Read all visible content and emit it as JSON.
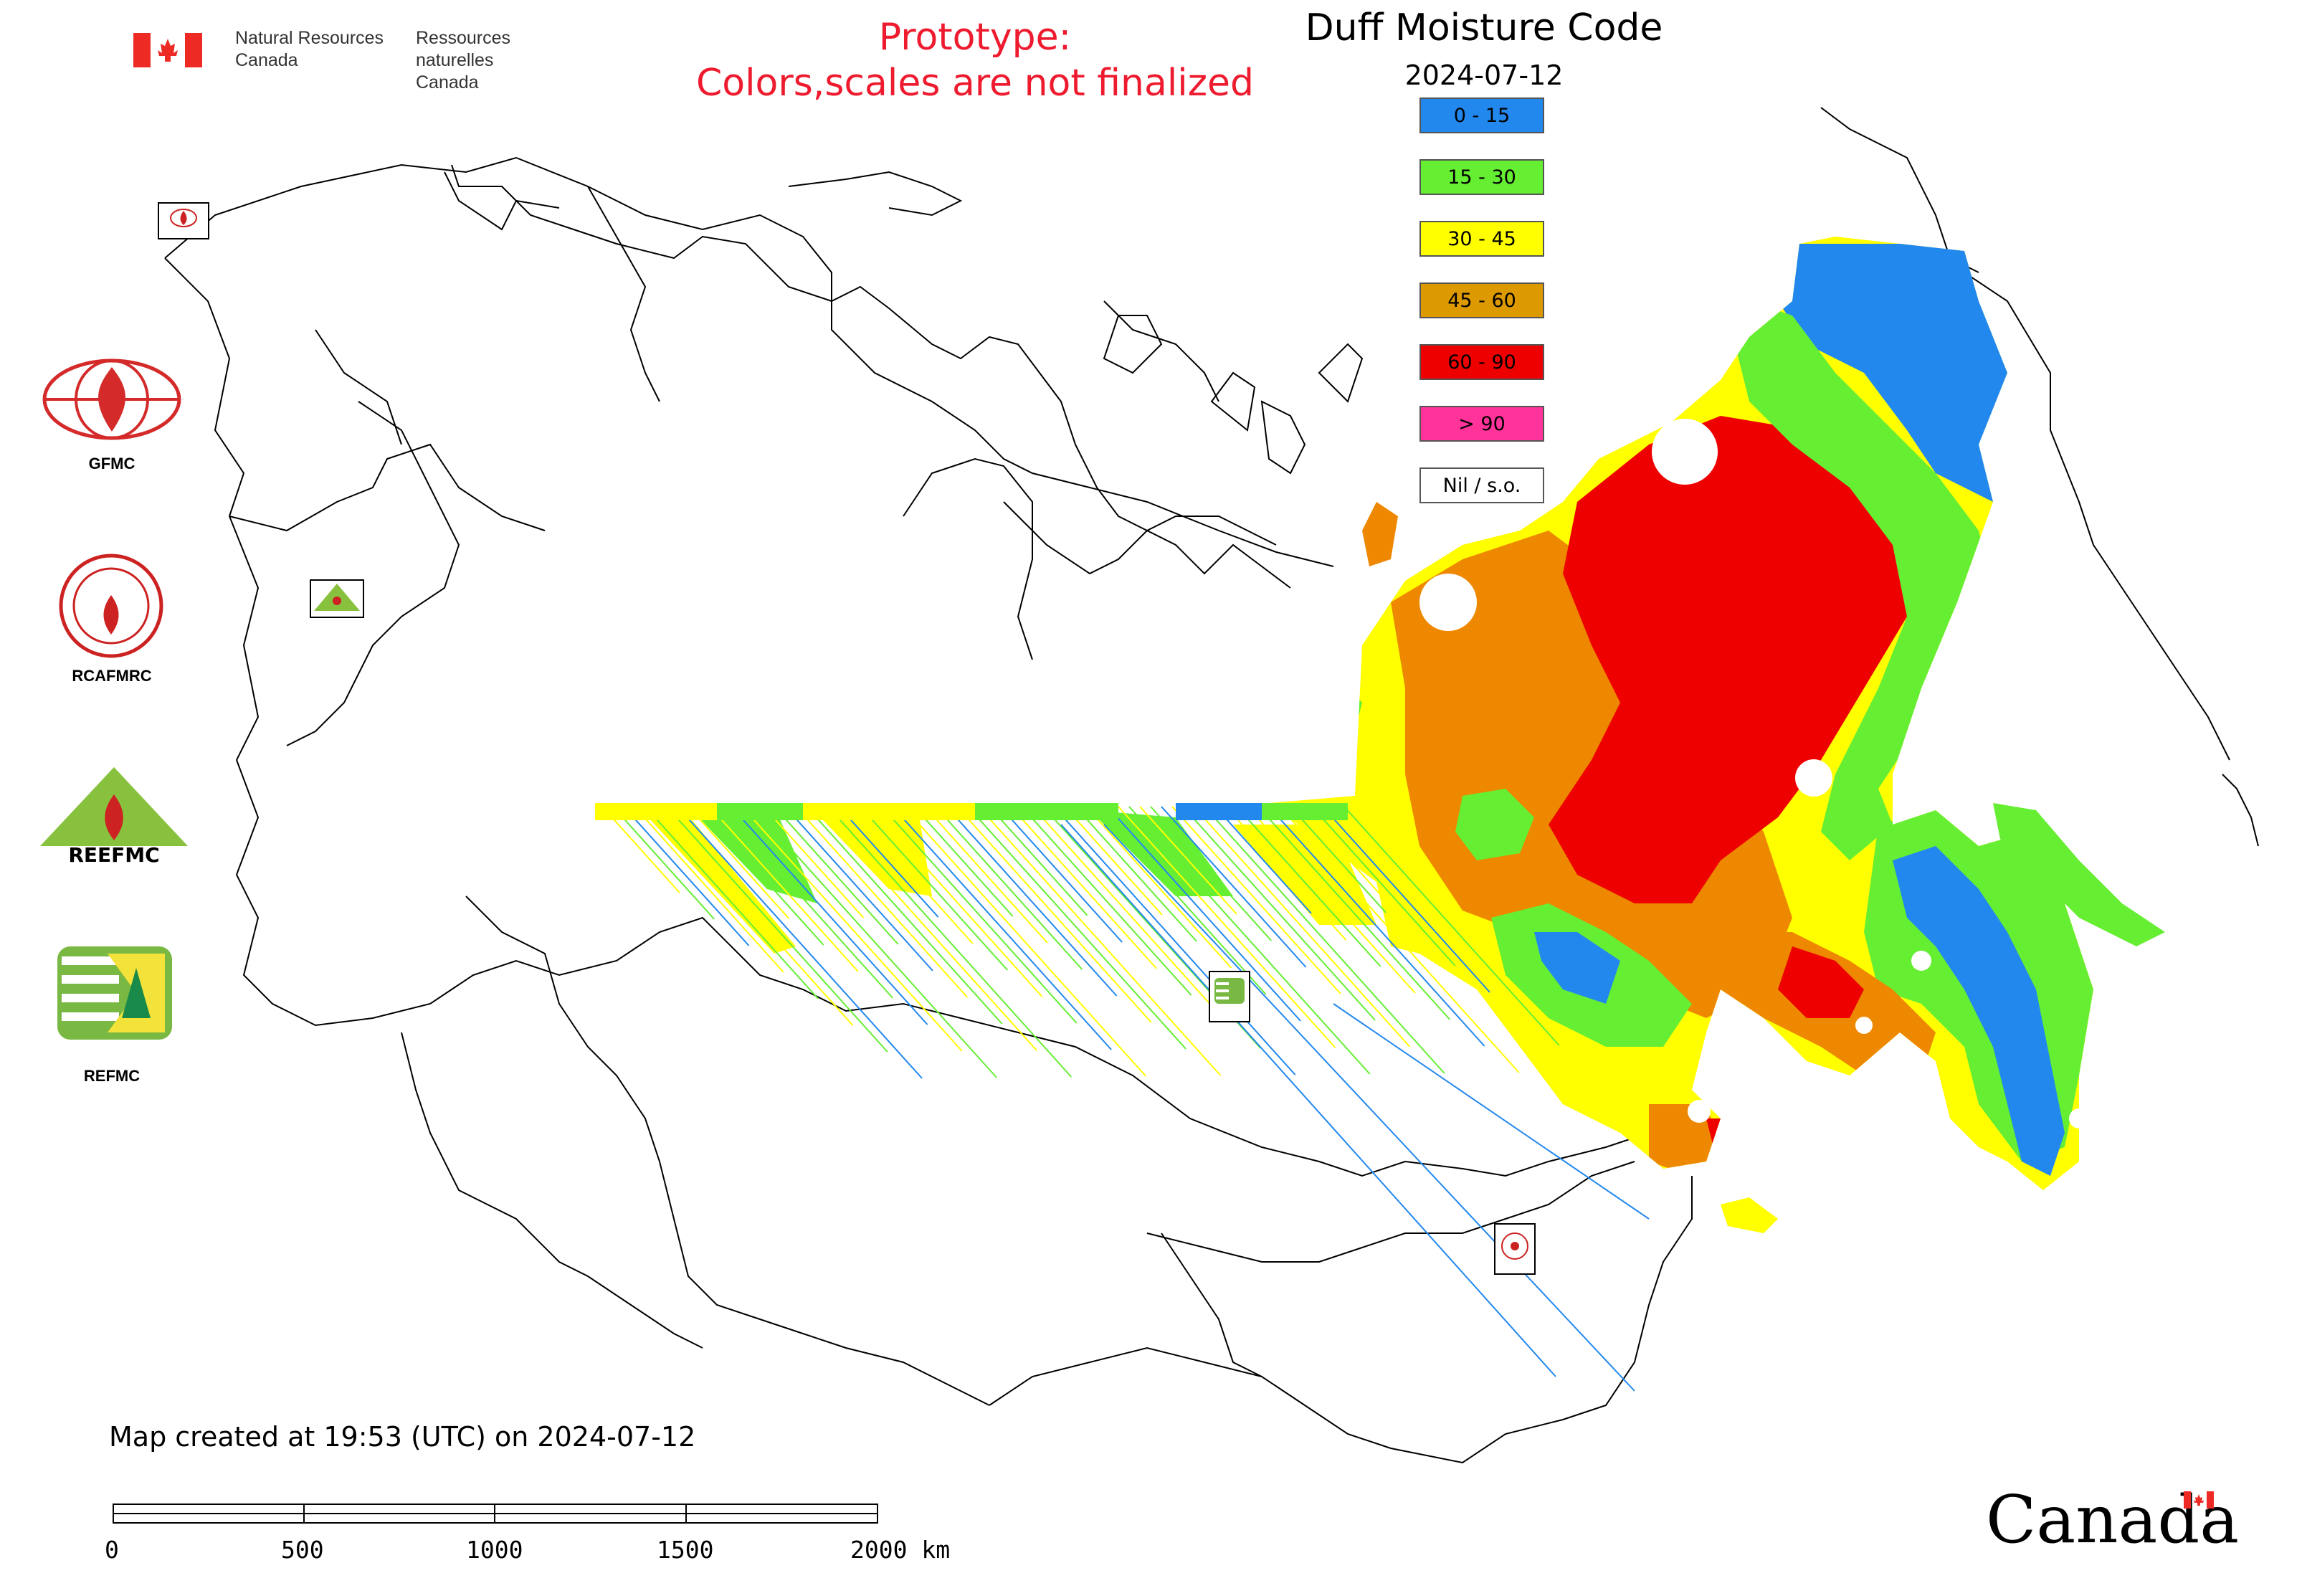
{
  "header": {
    "agency_en_line1": "Natural Resources",
    "agency_en_line2": "Canada",
    "agency_fr_line1": "Ressources naturelles",
    "agency_fr_line2": "Canada",
    "prototype_line1": "Prototype:",
    "prototype_line2": "Colors,scales are not finalized"
  },
  "map": {
    "title": "Duff Moisture Code",
    "date": "2024-07-12"
  },
  "legend": {
    "items": [
      {
        "label": "0 - 15",
        "color": "#2288ee"
      },
      {
        "label": "15 - 30",
        "color": "#66ee33"
      },
      {
        "label": "30 - 45",
        "color": "#ffff00"
      },
      {
        "label": "45 - 60",
        "color": "#dd9900"
      },
      {
        "label": "60 - 90",
        "color": "#ee0000"
      },
      {
        "label": "> 90",
        "color": "#ff3399"
      },
      {
        "label": "Nil / s.o.",
        "color": "#ffffff"
      }
    ]
  },
  "logos": {
    "gfmc": "GFMC",
    "rcafmrc": "RCAFMRC",
    "reefmc_text": "REEFMC",
    "refmc": "REFMC"
  },
  "footer": {
    "created": "Map created at 19:53 (UTC) on 2024-07-12",
    "scale_labels": [
      "0",
      "500",
      "1000",
      "1500",
      "2000 km"
    ],
    "canada_wordmark": "Canada"
  },
  "colors": {
    "blue": "#2288ee",
    "green": "#66ee33",
    "yellow": "#ffff00",
    "orange": "#ee8800",
    "red": "#ee0000",
    "proto_red": "#ee1b2f"
  }
}
